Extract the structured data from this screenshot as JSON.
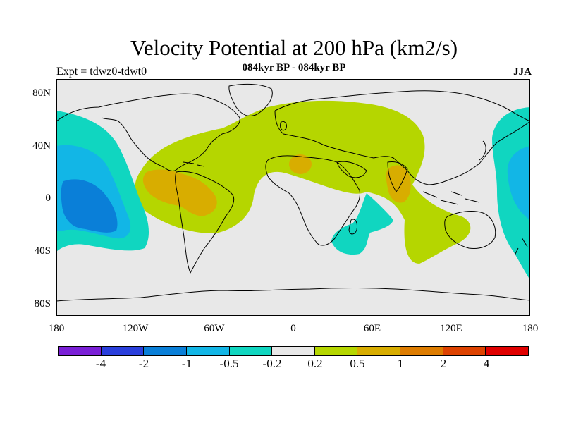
{
  "title": "Velocity Potential at 200 hPa (km2/s)",
  "subtitle": "084kyr BP - 084kyr BP",
  "left_label": "Expt = tdwz0-tdwt0",
  "right_label": "JJA",
  "axes": {
    "y_ticks": [
      "80N",
      "40N",
      "0",
      "40S",
      "80S"
    ],
    "x_ticks": [
      "180",
      "120W",
      "60W",
      "0",
      "60E",
      "120E",
      "180"
    ]
  },
  "colorbar": {
    "colors": [
      "#7a1fd6",
      "#2a3fdc",
      "#0a7fd8",
      "#12b6e6",
      "#10d6c0",
      "#e8e8e8",
      "#b5d600",
      "#d8ad00",
      "#dd7c00",
      "#dd4200",
      "#e00000"
    ],
    "labels": [
      "-4",
      "-2",
      "-1",
      "-0.5",
      "-0.2",
      "0.2",
      "0.5",
      "1",
      "2",
      "4"
    ]
  },
  "map": {
    "background_color": "#e8e8e8",
    "coastline_color": "#000000",
    "fill_colors": {
      "pos_0_2_0_5": "#b5d600",
      "pos_0_5_1": "#d8ad00",
      "neg_0_2_0_5": "#10d6c0",
      "neg_0_5_1": "#12b6e6",
      "neg_1_2": "#0a7fd8"
    }
  }
}
